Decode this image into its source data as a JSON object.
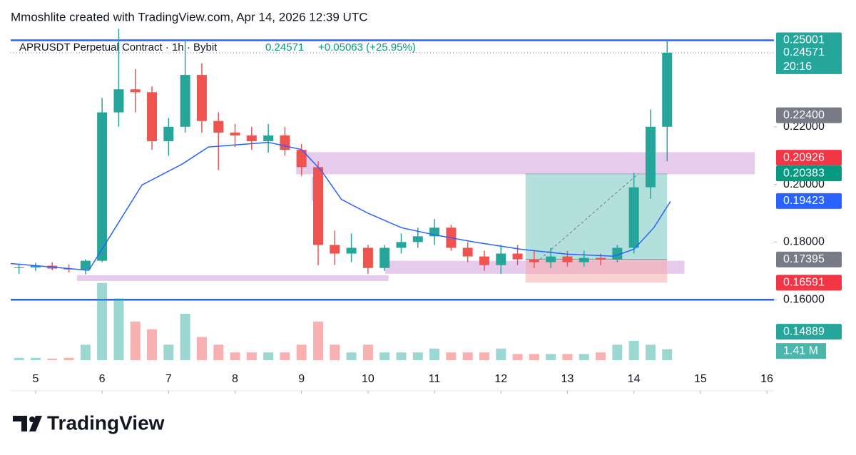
{
  "chart_data": {
    "type": "candlestick",
    "header": "Mmoshlite created with TradingView.com, Apr 14, 2026 12:39 UTC",
    "symbol": "APRUSDT Perpetual Contract · 1h · Bybit",
    "last": "0.24571",
    "change": "+0.05063 (+25.95%)",
    "brand": "TradingView",
    "up_color": "#26a69a",
    "down_color": "#ef5350",
    "x": [
      4.75,
      5.0,
      5.25,
      5.5,
      5.75,
      6.0,
      6.25,
      6.5,
      6.75,
      7.0,
      7.25,
      7.5,
      7.75,
      8.0,
      8.25,
      8.5,
      8.75,
      9.0,
      9.25,
      9.5,
      9.75,
      10.0,
      10.25,
      10.5,
      10.75,
      11.0,
      11.25,
      11.5,
      11.75,
      12.0,
      12.25,
      12.5,
      12.75,
      13.0,
      13.25,
      13.5,
      13.75,
      14.0,
      14.25,
      14.5
    ],
    "open": [
      0.171,
      0.1712,
      0.1718,
      0.1708,
      0.1705,
      0.1735,
      0.225,
      0.233,
      0.232,
      0.215,
      0.22,
      0.238,
      0.222,
      0.218,
      0.217,
      0.215,
      0.217,
      0.212,
      0.206,
      0.179,
      0.176,
      0.178,
      0.171,
      0.178,
      0.18,
      0.182,
      0.185,
      0.178,
      0.175,
      0.172,
      0.176,
      0.174,
      0.173,
      0.175,
      0.173,
      0.1745,
      0.174,
      0.178,
      0.199,
      0.22
    ],
    "high": [
      0.1725,
      0.1728,
      0.173,
      0.1722,
      0.174,
      0.23,
      0.254,
      0.24,
      0.234,
      0.223,
      0.25,
      0.242,
      0.225,
      0.221,
      0.22,
      0.221,
      0.22,
      0.214,
      0.208,
      0.184,
      0.183,
      0.179,
      0.179,
      0.183,
      0.185,
      0.188,
      0.186,
      0.18,
      0.177,
      0.179,
      0.179,
      0.177,
      0.178,
      0.177,
      0.177,
      0.176,
      0.179,
      0.204,
      0.226,
      0.25
    ],
    "low": [
      0.169,
      0.17,
      0.1702,
      0.1695,
      0.1688,
      0.173,
      0.22,
      0.225,
      0.212,
      0.21,
      0.218,
      0.218,
      0.205,
      0.213,
      0.212,
      0.211,
      0.21,
      0.203,
      0.172,
      0.172,
      0.173,
      0.169,
      0.17,
      0.176,
      0.178,
      0.179,
      0.177,
      0.173,
      0.17,
      0.169,
      0.172,
      0.171,
      0.171,
      0.1715,
      0.1715,
      0.172,
      0.173,
      0.176,
      0.195,
      0.208
    ],
    "close": [
      0.1712,
      0.1718,
      0.1708,
      0.1705,
      0.1735,
      0.225,
      0.233,
      0.232,
      0.215,
      0.22,
      0.238,
      0.222,
      0.218,
      0.217,
      0.215,
      0.217,
      0.212,
      0.206,
      0.179,
      0.176,
      0.178,
      0.171,
      0.178,
      0.18,
      0.182,
      0.185,
      0.178,
      0.175,
      0.172,
      0.176,
      0.174,
      0.173,
      0.175,
      0.173,
      0.1745,
      0.174,
      0.178,
      0.199,
      0.22,
      0.2457
    ],
    "volume": [
      0.3,
      0.3,
      0.2,
      0.3,
      2,
      10,
      8,
      5,
      4,
      2,
      6,
      3,
      2,
      1,
      1,
      1,
      1,
      2,
      5,
      2,
      1,
      2,
      1,
      1,
      1,
      1.5,
      1,
      1,
      1,
      1.5,
      0.8,
      0.8,
      0.8,
      0.8,
      0.8,
      1,
      2,
      2.5,
      2,
      1.41
    ],
    "volume_ylim": [
      0,
      12
    ],
    "ma": {
      "color": "#2962ff",
      "x": [
        4.6,
        5.8,
        6.2,
        6.6,
        7.2,
        7.6,
        8.5,
        9.0,
        9.3,
        9.6,
        10.0,
        10.5,
        11.0,
        11.6,
        12.3,
        13.0,
        13.7,
        14.0,
        14.3,
        14.55
      ],
      "values": [
        0.1726,
        0.1702,
        0.185,
        0.1998,
        0.207,
        0.213,
        0.2146,
        0.2121,
        0.2047,
        0.1948,
        0.19,
        0.185,
        0.1825,
        0.18,
        0.1775,
        0.1758,
        0.1751,
        0.1775,
        0.185,
        0.1941
      ]
    },
    "xlim": [
      4.625,
      16.107
    ],
    "xticks": [
      5,
      6,
      7,
      8,
      9,
      10,
      11,
      12,
      13,
      14,
      15,
      16
    ],
    "ylim": [
      0.1353,
      0.2541
    ],
    "yticks": [
      {
        "value": 0.16,
        "label": "0.16000"
      },
      {
        "value": 0.18,
        "label": "0.18000"
      },
      {
        "value": 0.2,
        "label": "0.20000"
      },
      {
        "value": 0.22,
        "label": "0.22000"
      }
    ],
    "hlines": {
      "color": "#2962ff",
      "values": [
        0.25001,
        0.16
      ]
    },
    "price_labels": [
      {
        "value": 0.25001,
        "label": "0.25001",
        "color": "#26a69a"
      },
      {
        "value": 0.24571,
        "label": "0.24571",
        "color": "#26a69a"
      },
      {
        "value": 0.224,
        "label": "0.22400",
        "color": "#787b86"
      },
      {
        "value": 0.20926,
        "label": "0.20926",
        "color": "#f23645"
      },
      {
        "value": 0.20383,
        "label": "0.20383",
        "color": "#089981"
      },
      {
        "value": 0.19423,
        "label": "0.19423",
        "color": "#2962ff"
      },
      {
        "value": 0.17395,
        "label": "0.17395",
        "color": "#787b86"
      },
      {
        "value": 0.16591,
        "label": "0.16591",
        "color": "#f23645"
      },
      {
        "value": 0.14889,
        "label": "0.14889",
        "color": "#26a69a"
      }
    ],
    "countdown": "20:16",
    "volume_label": "1.41 M",
    "zones": [
      {
        "x": [
          8.92,
          15.82
        ],
        "y": [
          0.2035,
          0.2112
        ],
        "color": "#e1bee7"
      },
      {
        "x": [
          5.62,
          10.31
        ],
        "y": [
          0.1665,
          0.1685
        ],
        "color": "#e1bee7"
      },
      {
        "x": [
          10.26,
          14.76
        ],
        "y": [
          0.169,
          0.1735
        ],
        "color": "#e1bee7"
      },
      {
        "x": [
          9.15,
          9.27
        ],
        "y": [
          0.1943,
          0.2027
        ],
        "color": "#e1bee7"
      }
    ],
    "position": {
      "x": [
        12.37,
        14.5
      ],
      "target": 0.20383,
      "entry": 0.17395,
      "stop": 0.16591
    }
  }
}
